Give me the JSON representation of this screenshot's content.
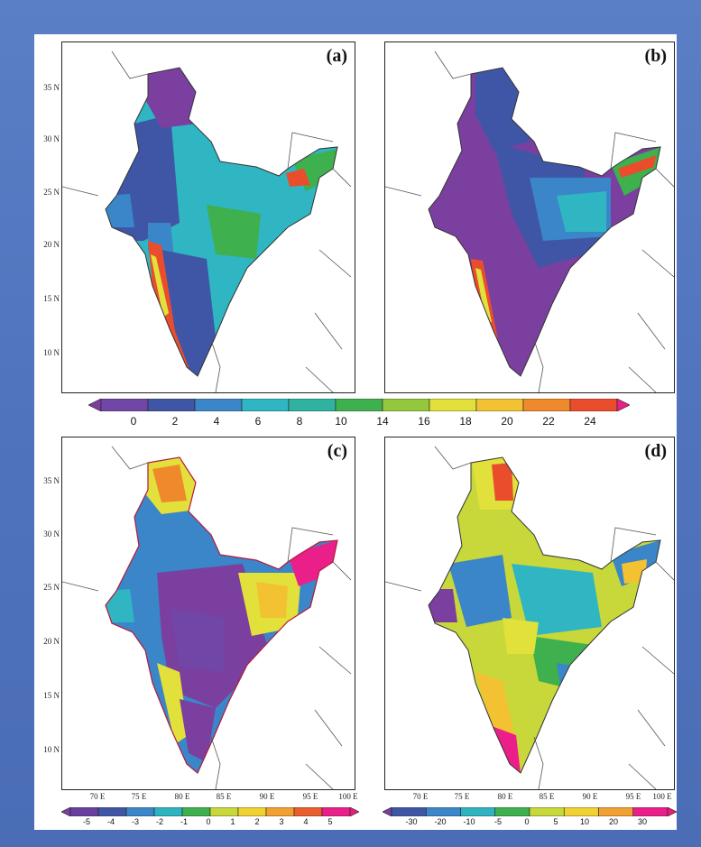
{
  "panels": [
    {
      "label": "(a)"
    },
    {
      "label": "(b)"
    },
    {
      "label": "(c)"
    },
    {
      "label": "(d)"
    }
  ],
  "lat_ticks": [
    "35 N",
    "30 N",
    "25 N",
    "20 N",
    "15 N",
    "10 N"
  ],
  "lon_ticks": [
    "70 E",
    "75 E",
    "80 E",
    "85 E",
    "90 E",
    "95 E",
    "100 E"
  ],
  "colorbar_top": {
    "labels": [
      "0",
      "2",
      "4",
      "6",
      "8",
      "10",
      "14",
      "16",
      "18",
      "20",
      "22",
      "24"
    ],
    "colors": [
      "#7b3fa0",
      "#7046a6",
      "#3f56a6",
      "#3a86c8",
      "#2fb6c2",
      "#2fb3a0",
      "#3eb04e",
      "#94c83c",
      "#e2e03a",
      "#f2c232",
      "#ef8a2c",
      "#ea4d2c",
      "#ea1f8a"
    ]
  },
  "colorbar_c": {
    "labels": [
      "-5",
      "-4",
      "-3",
      "-2",
      "-1",
      "0",
      "1",
      "2",
      "3",
      "4",
      "5"
    ],
    "colors": [
      "#7b3fa0",
      "#6a3f9f",
      "#3f56a6",
      "#3a86c8",
      "#2fb3c0",
      "#3eb04e",
      "#c8d83a",
      "#f2d232",
      "#f2a032",
      "#ea5d2c",
      "#ea1f8a",
      "#e6207a"
    ]
  },
  "colorbar_d": {
    "labels": [
      "-30",
      "-20",
      "-10",
      "-5",
      "0",
      "5",
      "10",
      "20",
      "30"
    ],
    "colors": [
      "#7b3fa0",
      "#3f56a6",
      "#3a86c8",
      "#2fb3c0",
      "#3eb04e",
      "#c8d83a",
      "#f2d232",
      "#f2a032",
      "#ea1f8a",
      "#e6207a"
    ]
  }
}
